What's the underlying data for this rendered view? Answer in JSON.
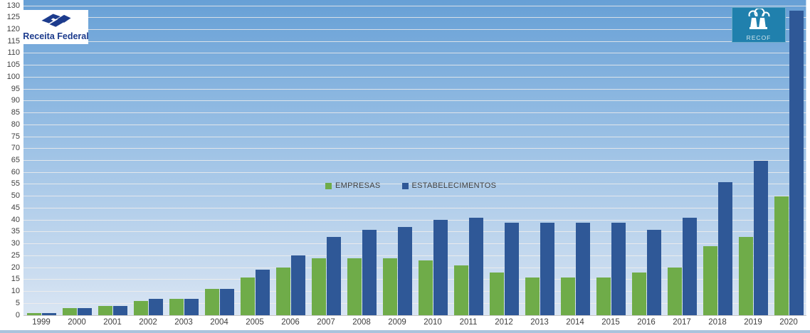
{
  "header": {
    "receita_logo_label": "Receita Federal",
    "recof_logo_label": "RECOF"
  },
  "legend": {
    "items": [
      {
        "label": "EMPRESAS",
        "color": "#6FAC49"
      },
      {
        "label": "ESTABELECIMENTOS",
        "color": "#2F5897"
      }
    ]
  },
  "chart_data": {
    "type": "bar",
    "title": "",
    "xlabel": "",
    "ylabel": "",
    "categories": [
      "1999",
      "2000",
      "2001",
      "2002",
      "2003",
      "2004",
      "2005",
      "2006",
      "2007",
      "2008",
      "2009",
      "2010",
      "2011",
      "2012",
      "2013",
      "2014",
      "2015",
      "2016",
      "2017",
      "2018",
      "2019",
      "2020"
    ],
    "series": [
      {
        "name": "EMPRESAS",
        "color": "#6FAC49",
        "values": [
          1,
          3,
          4,
          6,
          7,
          11,
          16,
          20,
          24,
          24,
          24,
          23,
          21,
          18,
          16,
          16,
          16,
          18,
          20,
          29,
          33,
          50
        ]
      },
      {
        "name": "ESTABELECIMENTOS",
        "color": "#2F5897",
        "values": [
          1,
          3,
          4,
          7,
          7,
          11,
          19,
          25,
          33,
          36,
          37,
          40,
          41,
          39,
          39,
          39,
          39,
          36,
          41,
          56,
          65,
          128
        ]
      }
    ],
    "ylim": [
      0,
      130
    ],
    "ytick_step": 5,
    "yticks": [
      0,
      5,
      10,
      15,
      20,
      25,
      30,
      35,
      40,
      45,
      50,
      55,
      60,
      65,
      70,
      75,
      80,
      85,
      90,
      95,
      100,
      105,
      110,
      115,
      120,
      125,
      130
    ],
    "grid": true,
    "legend_position": "center-middle"
  },
  "colors": {
    "plot_gradient_top": "#67A0D6",
    "plot_gradient_bottom": "#D9E5F3",
    "gridline": "#F3EFEC",
    "axis_text": "#3f3f3f",
    "receita_navy": "#1c3b8d",
    "recof_teal": "#2080AD",
    "bottom_strip": "#A9C3DD"
  }
}
